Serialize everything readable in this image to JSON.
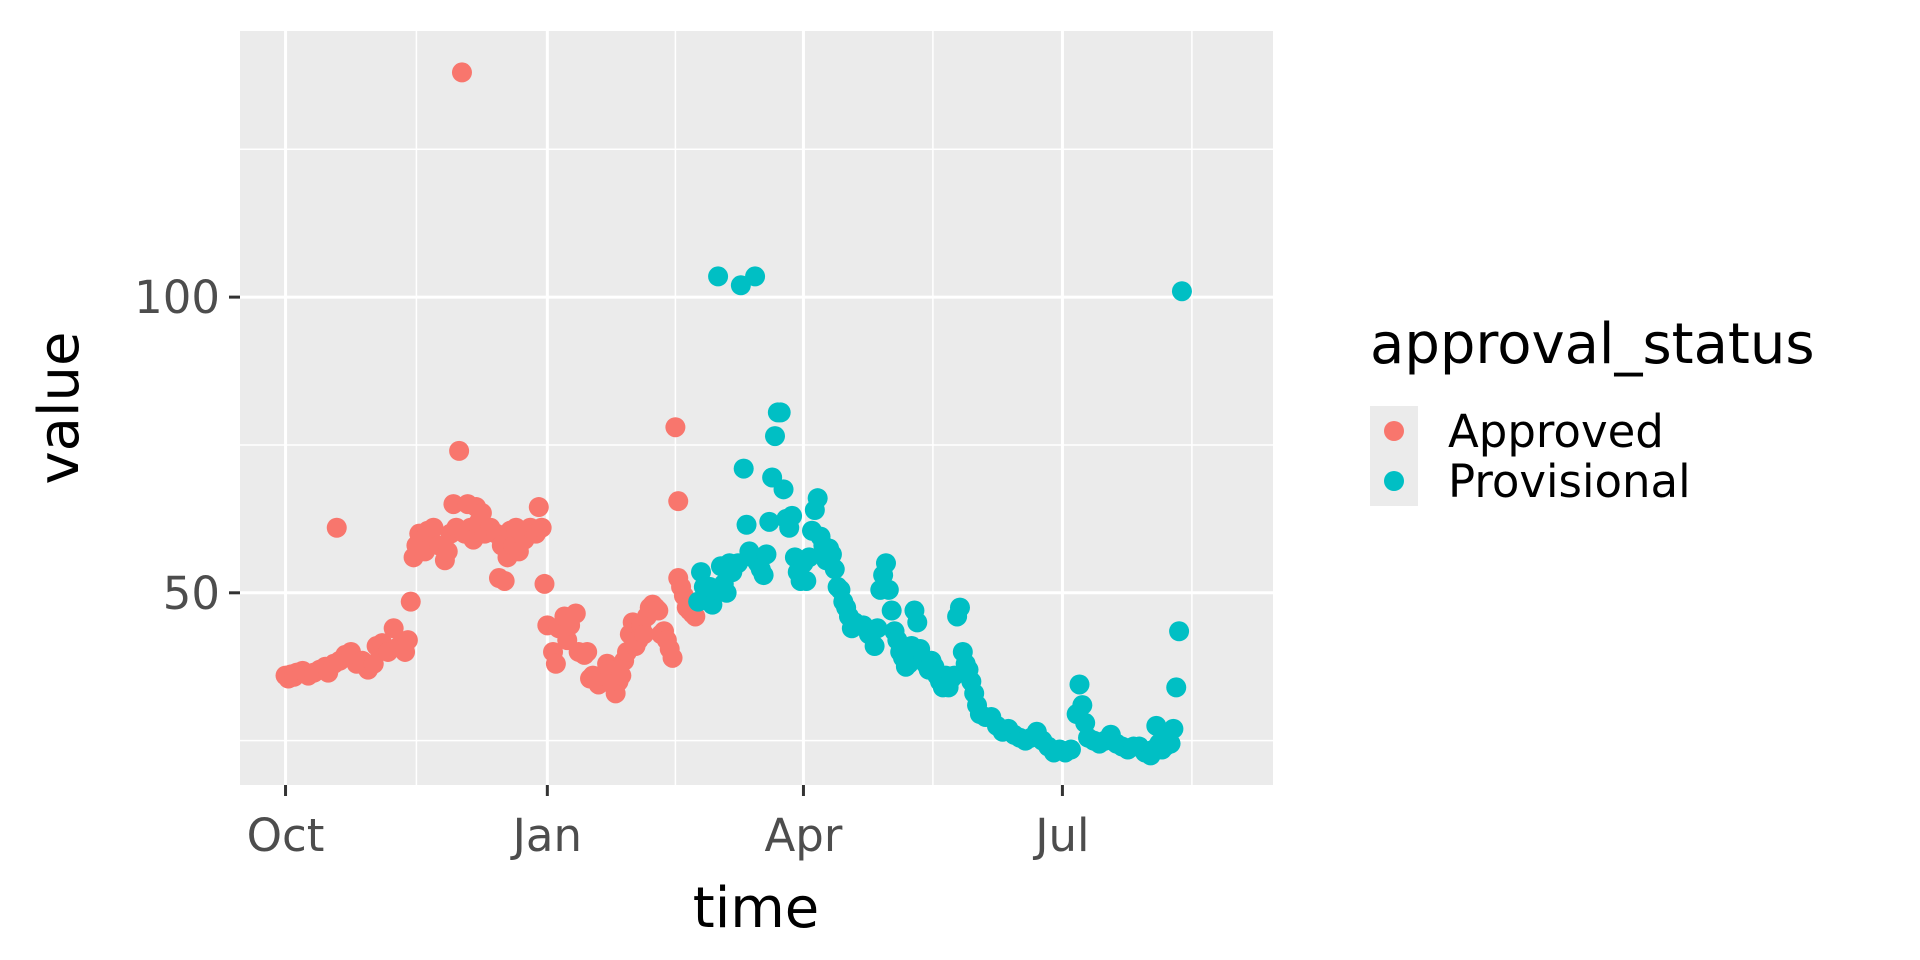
{
  "chart_data": {
    "type": "scatter",
    "xlabel": "time",
    "ylabel": "value",
    "x_ticks": [
      {
        "label": "Oct",
        "date": "2021-10-01"
      },
      {
        "label": "Jan",
        "date": "2022-01-01"
      },
      {
        "label": "Apr",
        "date": "2022-04-01"
      },
      {
        "label": "Jul",
        "date": "2022-07-01"
      }
    ],
    "y_ticks": [
      50,
      100
    ],
    "xlim": [
      "2021-09-15",
      "2022-09-13"
    ],
    "ylim": [
      17.5,
      145
    ],
    "grid": true,
    "legend": {
      "title": "approval_status",
      "position": "right"
    },
    "series": [
      {
        "name": "Approved",
        "color": "#F8766D",
        "points": [
          [
            "2021-10-01",
            36
          ],
          [
            "2021-10-02",
            35.5
          ],
          [
            "2021-10-03",
            36.2
          ],
          [
            "2021-10-04",
            35.8
          ],
          [
            "2021-10-05",
            36.5
          ],
          [
            "2021-10-07",
            36.8
          ],
          [
            "2021-10-09",
            36
          ],
          [
            "2021-10-11",
            36.5
          ],
          [
            "2021-10-13",
            37
          ],
          [
            "2021-10-15",
            37.5
          ],
          [
            "2021-10-16",
            36.5
          ],
          [
            "2021-10-18",
            38
          ],
          [
            "2021-10-19",
            61
          ],
          [
            "2021-10-20",
            38.5
          ],
          [
            "2021-10-22",
            39.5
          ],
          [
            "2021-10-24",
            40
          ],
          [
            "2021-10-26",
            38
          ],
          [
            "2021-10-28",
            38.5
          ],
          [
            "2021-10-30",
            37
          ],
          [
            "2021-11-01",
            38
          ],
          [
            "2021-11-02",
            41
          ],
          [
            "2021-11-04",
            41.5
          ],
          [
            "2021-11-06",
            40
          ],
          [
            "2021-11-08",
            44
          ],
          [
            "2021-11-10",
            41
          ],
          [
            "2021-11-12",
            40
          ],
          [
            "2021-11-13",
            42
          ],
          [
            "2021-11-14",
            48.5
          ],
          [
            "2021-11-15",
            56
          ],
          [
            "2021-11-16",
            58
          ],
          [
            "2021-11-17",
            60
          ],
          [
            "2021-11-18",
            59
          ],
          [
            "2021-11-19",
            57
          ],
          [
            "2021-11-20",
            60.5
          ],
          [
            "2021-11-22",
            61
          ],
          [
            "2021-11-24",
            58
          ],
          [
            "2021-11-26",
            55.5
          ],
          [
            "2021-11-27",
            57
          ],
          [
            "2021-11-28",
            60
          ],
          [
            "2021-11-29",
            65
          ],
          [
            "2021-11-30",
            61
          ],
          [
            "2021-12-01",
            74
          ],
          [
            "2021-12-02",
            138
          ],
          [
            "2021-12-03",
            60
          ],
          [
            "2021-12-04",
            65
          ],
          [
            "2021-12-05",
            61
          ],
          [
            "2021-12-06",
            59
          ],
          [
            "2021-12-07",
            64.5
          ],
          [
            "2021-12-08",
            62
          ],
          [
            "2021-12-09",
            63.5
          ],
          [
            "2021-12-10",
            60
          ],
          [
            "2021-12-12",
            61
          ],
          [
            "2021-12-14",
            60
          ],
          [
            "2021-12-15",
            52.5
          ],
          [
            "2021-12-16",
            58
          ],
          [
            "2021-12-17",
            52
          ],
          [
            "2021-12-18",
            56
          ],
          [
            "2021-12-19",
            60.5
          ],
          [
            "2021-12-20",
            58
          ],
          [
            "2021-12-21",
            61
          ],
          [
            "2021-12-22",
            57
          ],
          [
            "2021-12-24",
            59
          ],
          [
            "2021-12-26",
            61
          ],
          [
            "2021-12-28",
            60
          ],
          [
            "2021-12-29",
            64.5
          ],
          [
            "2021-12-30",
            61
          ],
          [
            "2021-12-31",
            51.5
          ],
          [
            "2022-01-01",
            44.5
          ],
          [
            "2022-01-03",
            40
          ],
          [
            "2022-01-04",
            38
          ],
          [
            "2022-01-05",
            44
          ],
          [
            "2022-01-07",
            46
          ],
          [
            "2022-01-08",
            42
          ],
          [
            "2022-01-09",
            44.5
          ],
          [
            "2022-01-11",
            46.5
          ],
          [
            "2022-01-12",
            40
          ],
          [
            "2022-01-14",
            39.5
          ],
          [
            "2022-01-15",
            40
          ],
          [
            "2022-01-16",
            35.5
          ],
          [
            "2022-01-17",
            36
          ],
          [
            "2022-01-19",
            34.5
          ],
          [
            "2022-01-20",
            36
          ],
          [
            "2022-01-22",
            38
          ],
          [
            "2022-01-23",
            37
          ],
          [
            "2022-01-24",
            34.5
          ],
          [
            "2022-01-25",
            33
          ],
          [
            "2022-01-26",
            35
          ],
          [
            "2022-01-27",
            36
          ],
          [
            "2022-01-28",
            38.5
          ],
          [
            "2022-01-29",
            40
          ],
          [
            "2022-01-30",
            43
          ],
          [
            "2022-01-31",
            45
          ],
          [
            "2022-02-01",
            41
          ],
          [
            "2022-02-02",
            42
          ],
          [
            "2022-02-03",
            44.5
          ],
          [
            "2022-02-04",
            43
          ],
          [
            "2022-02-05",
            46
          ],
          [
            "2022-02-06",
            47.5
          ],
          [
            "2022-02-07",
            48
          ],
          [
            "2022-02-08",
            47.5
          ],
          [
            "2022-02-09",
            47
          ],
          [
            "2022-02-10",
            43
          ],
          [
            "2022-02-11",
            43.5
          ],
          [
            "2022-02-12",
            42
          ],
          [
            "2022-02-13",
            40.5
          ],
          [
            "2022-02-14",
            39
          ],
          [
            "2022-02-15",
            78
          ],
          [
            "2022-02-16",
            65.5
          ],
          [
            "2022-02-16",
            52.5
          ],
          [
            "2022-02-17",
            51
          ],
          [
            "2022-02-18",
            49.5
          ],
          [
            "2022-02-19",
            47.5
          ],
          [
            "2022-02-20",
            47
          ],
          [
            "2022-02-21",
            46.5
          ],
          [
            "2022-02-22",
            46
          ]
        ]
      },
      {
        "name": "Provisional",
        "color": "#00BFC4",
        "points": [
          [
            "2022-02-23",
            48.5
          ],
          [
            "2022-02-24",
            53.5
          ],
          [
            "2022-02-25",
            51
          ],
          [
            "2022-02-26",
            49.5
          ],
          [
            "2022-02-27",
            51
          ],
          [
            "2022-02-28",
            48
          ],
          [
            "2022-03-01",
            50.5
          ],
          [
            "2022-03-02",
            103.5
          ],
          [
            "2022-03-03",
            54.5
          ],
          [
            "2022-03-04",
            51.5
          ],
          [
            "2022-03-05",
            50
          ],
          [
            "2022-03-06",
            55
          ],
          [
            "2022-03-07",
            53.5
          ],
          [
            "2022-03-09",
            55
          ],
          [
            "2022-03-10",
            102
          ],
          [
            "2022-03-11",
            71
          ],
          [
            "2022-03-12",
            61.5
          ],
          [
            "2022-03-13",
            57
          ],
          [
            "2022-03-14",
            56
          ],
          [
            "2022-03-15",
            103.5
          ],
          [
            "2022-03-16",
            55
          ],
          [
            "2022-03-17",
            54
          ],
          [
            "2022-03-18",
            53
          ],
          [
            "2022-03-19",
            56.5
          ],
          [
            "2022-03-20",
            62
          ],
          [
            "2022-03-21",
            69.5
          ],
          [
            "2022-03-22",
            76.5
          ],
          [
            "2022-03-23",
            80.5
          ],
          [
            "2022-03-24",
            80.5
          ],
          [
            "2022-03-25",
            67.5
          ],
          [
            "2022-03-26",
            62.5
          ],
          [
            "2022-03-27",
            61
          ],
          [
            "2022-03-28",
            63
          ],
          [
            "2022-03-29",
            56
          ],
          [
            "2022-03-30",
            53.5
          ],
          [
            "2022-03-31",
            52
          ],
          [
            "2022-04-01",
            55
          ],
          [
            "2022-04-02",
            52
          ],
          [
            "2022-04-03",
            56
          ],
          [
            "2022-04-04",
            60.5
          ],
          [
            "2022-04-05",
            64
          ],
          [
            "2022-04-06",
            66
          ],
          [
            "2022-04-07",
            59.5
          ],
          [
            "2022-04-08",
            58
          ],
          [
            "2022-04-09",
            55.5
          ],
          [
            "2022-04-10",
            57.5
          ],
          [
            "2022-04-11",
            56.5
          ],
          [
            "2022-04-12",
            54
          ],
          [
            "2022-04-13",
            51
          ],
          [
            "2022-04-14",
            50.5
          ],
          [
            "2022-04-15",
            48.5
          ],
          [
            "2022-04-16",
            47.5
          ],
          [
            "2022-04-17",
            46
          ],
          [
            "2022-04-18",
            44
          ],
          [
            "2022-04-19",
            45
          ],
          [
            "2022-04-20",
            44.5
          ],
          [
            "2022-04-22",
            44.5
          ],
          [
            "2022-04-24",
            43
          ],
          [
            "2022-04-26",
            41
          ],
          [
            "2022-04-27",
            44
          ],
          [
            "2022-04-28",
            50.5
          ],
          [
            "2022-04-29",
            53
          ],
          [
            "2022-04-30",
            55
          ],
          [
            "2022-05-01",
            50.5
          ],
          [
            "2022-05-02",
            47
          ],
          [
            "2022-05-03",
            43.5
          ],
          [
            "2022-05-04",
            42
          ],
          [
            "2022-05-05",
            40
          ],
          [
            "2022-05-06",
            39
          ],
          [
            "2022-05-07",
            37.5
          ],
          [
            "2022-05-08",
            38
          ],
          [
            "2022-05-09",
            41
          ],
          [
            "2022-05-10",
            47
          ],
          [
            "2022-05-11",
            45
          ],
          [
            "2022-05-12",
            40.5
          ],
          [
            "2022-05-13",
            39
          ],
          [
            "2022-05-14",
            38
          ],
          [
            "2022-05-15",
            37
          ],
          [
            "2022-05-16",
            38.5
          ],
          [
            "2022-05-17",
            37.5
          ],
          [
            "2022-05-18",
            36
          ],
          [
            "2022-05-19",
            35
          ],
          [
            "2022-05-20",
            34
          ],
          [
            "2022-05-21",
            36
          ],
          [
            "2022-05-22",
            34
          ],
          [
            "2022-05-23",
            35.5
          ],
          [
            "2022-05-24",
            36
          ],
          [
            "2022-05-25",
            46
          ],
          [
            "2022-05-26",
            47.5
          ],
          [
            "2022-05-27",
            40
          ],
          [
            "2022-05-28",
            38
          ],
          [
            "2022-05-29",
            37
          ],
          [
            "2022-05-30",
            35
          ],
          [
            "2022-05-31",
            33
          ],
          [
            "2022-06-01",
            31
          ],
          [
            "2022-06-02",
            29.5
          ],
          [
            "2022-06-04",
            29
          ],
          [
            "2022-06-06",
            29
          ],
          [
            "2022-06-08",
            27.5
          ],
          [
            "2022-06-10",
            26.5
          ],
          [
            "2022-06-12",
            27
          ],
          [
            "2022-06-14",
            26
          ],
          [
            "2022-06-16",
            25.5
          ],
          [
            "2022-06-18",
            25
          ],
          [
            "2022-06-20",
            25.5
          ],
          [
            "2022-06-22",
            26.5
          ],
          [
            "2022-06-24",
            25
          ],
          [
            "2022-06-26",
            24
          ],
          [
            "2022-06-28",
            23
          ],
          [
            "2022-06-30",
            23.5
          ],
          [
            "2022-07-02",
            23
          ],
          [
            "2022-07-04",
            23.5
          ],
          [
            "2022-07-06",
            29.5
          ],
          [
            "2022-07-07",
            34.5
          ],
          [
            "2022-07-08",
            31
          ],
          [
            "2022-07-09",
            28
          ],
          [
            "2022-07-10",
            25.5
          ],
          [
            "2022-07-12",
            25
          ],
          [
            "2022-07-14",
            24.5
          ],
          [
            "2022-07-16",
            25
          ],
          [
            "2022-07-18",
            26
          ],
          [
            "2022-07-20",
            24.5
          ],
          [
            "2022-07-22",
            24
          ],
          [
            "2022-07-24",
            23.5
          ],
          [
            "2022-07-26",
            24
          ],
          [
            "2022-07-28",
            24
          ],
          [
            "2022-07-30",
            23
          ],
          [
            "2022-08-01",
            22.5
          ],
          [
            "2022-08-02",
            23.5
          ],
          [
            "2022-08-03",
            27.5
          ],
          [
            "2022-08-04",
            24.5
          ],
          [
            "2022-08-05",
            23.5
          ],
          [
            "2022-08-06",
            24
          ],
          [
            "2022-08-07",
            25
          ],
          [
            "2022-08-08",
            24.5
          ],
          [
            "2022-08-09",
            27
          ],
          [
            "2022-08-10",
            34
          ],
          [
            "2022-08-11",
            43.5
          ],
          [
            "2022-08-12",
            101
          ]
        ]
      }
    ]
  }
}
